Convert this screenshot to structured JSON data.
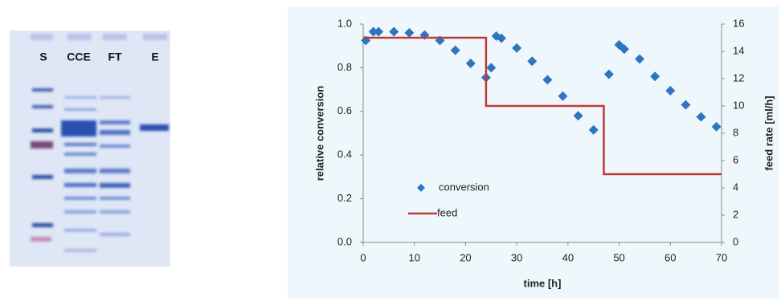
{
  "gel": {
    "lanes": [
      "S",
      "CCE",
      "FT",
      "E"
    ]
  },
  "chart_data": {
    "type": "combo",
    "x_label": "time [h]",
    "y_label": "relative conversion",
    "y2_label": "feed rate [ml/h]",
    "xlim": [
      0,
      70
    ],
    "xticks": [
      0,
      10,
      20,
      30,
      40,
      50,
      60,
      70
    ],
    "ylim": [
      0,
      1
    ],
    "yticks": [
      {
        "value": 0,
        "label": "0.0"
      },
      {
        "value": 0.2,
        "label": "0.2"
      },
      {
        "value": 0.4,
        "label": "0.4"
      },
      {
        "value": 0.6,
        "label": "0.6"
      },
      {
        "value": 0.8,
        "label": "0.8"
      },
      {
        "value": 1,
        "label": "1.0"
      }
    ],
    "y2lim": [
      0,
      16
    ],
    "y2ticks": [
      0,
      2,
      4,
      6,
      8,
      10,
      12,
      14,
      16
    ],
    "grid": false,
    "legend": "lower left",
    "series": [
      {
        "name": "conversion",
        "type": "scatter",
        "color": "#2f74c0",
        "x": [
          0.5,
          2,
          3,
          6,
          9,
          12,
          15,
          18,
          21,
          24,
          25,
          26,
          27,
          30,
          33,
          36,
          39,
          42,
          45,
          48,
          50,
          51,
          54,
          57,
          60,
          63,
          66,
          69
        ],
        "values": [
          0.925,
          0.965,
          0.965,
          0.965,
          0.96,
          0.95,
          0.925,
          0.88,
          0.82,
          0.755,
          0.8,
          0.945,
          0.935,
          0.89,
          0.83,
          0.745,
          0.67,
          0.58,
          0.515,
          0.77,
          0.905,
          0.885,
          0.84,
          0.76,
          0.695,
          0.63,
          0.575,
          0.53
        ]
      },
      {
        "name": "feed",
        "type": "line",
        "axis": "y2",
        "color": "#be3a3a",
        "x": [
          0,
          24,
          24,
          47,
          47,
          70
        ],
        "values": [
          15,
          15,
          10,
          10,
          5,
          5
        ]
      }
    ]
  }
}
